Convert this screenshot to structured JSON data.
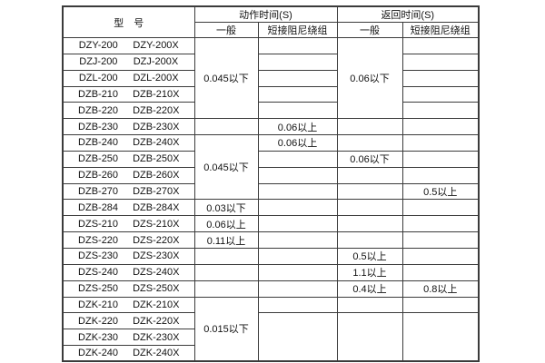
{
  "colors": {
    "background": "#ffffff",
    "border": "#3b3b3b",
    "text": "#111111"
  },
  "header": {
    "model": "型　号",
    "action_time": "动作时间(S)",
    "return_time": "返回时间(S)",
    "action_general": "一般",
    "action_damping": "短接阻尼绕组",
    "return_general": "一般",
    "return_damping": "短接阻尼绕组"
  },
  "models": [
    [
      "DZY-200",
      "DZY-200X"
    ],
    [
      "DZJ-200",
      "DZJ-200X"
    ],
    [
      "DZL-200",
      "DZL-200X"
    ],
    [
      "DZB-210",
      "DZB-210X"
    ],
    [
      "DZB-220",
      "DZB-220X"
    ],
    [
      "DZB-230",
      "DZB-230X"
    ],
    [
      "DZB-240",
      "DZB-240X"
    ],
    [
      "DZB-250",
      "DZB-250X"
    ],
    [
      "DZB-260",
      "DZB-260X"
    ],
    [
      "DZB-270",
      "DZB-270X"
    ],
    [
      "DZB-284",
      "DZB-284X"
    ],
    [
      "DZS-210",
      "DZS-210X"
    ],
    [
      "DZS-220",
      "DZS-220X"
    ],
    [
      "DZS-230",
      "DZS-230X"
    ],
    [
      "DZS-240",
      "DZS-240X"
    ],
    [
      "DZS-250",
      "DZS-250X"
    ],
    [
      "DZK-210",
      "DZK-210X"
    ],
    [
      "DZK-220",
      "DZK-220X"
    ],
    [
      "DZK-230",
      "DZK-230X"
    ],
    [
      "DZK-240",
      "DZK-240X"
    ]
  ],
  "columns": {
    "action_general": [
      {
        "row": 1,
        "span": 5,
        "text": "0.045以下"
      },
      {
        "row": 6,
        "span": 1,
        "text": ""
      },
      {
        "row": 7,
        "span": 4,
        "text": "0.045以下"
      },
      {
        "row": 11,
        "span": 1,
        "text": "0.03以下"
      },
      {
        "row": 12,
        "span": 1,
        "text": "0.06以上"
      },
      {
        "row": 13,
        "span": 1,
        "text": "0.11以上"
      },
      {
        "row": 14,
        "span": 1,
        "text": ""
      },
      {
        "row": 15,
        "span": 1,
        "text": ""
      },
      {
        "row": 16,
        "span": 1,
        "text": ""
      },
      {
        "row": 17,
        "span": 4,
        "text": "0.015以下"
      }
    ],
    "action_damping": [
      {
        "row": 1,
        "span": 1,
        "text": ""
      },
      {
        "row": 2,
        "span": 1,
        "text": ""
      },
      {
        "row": 3,
        "span": 1,
        "text": ""
      },
      {
        "row": 4,
        "span": 1,
        "text": ""
      },
      {
        "row": 5,
        "span": 1,
        "text": ""
      },
      {
        "row": 6,
        "span": 1,
        "text": "0.06以上"
      },
      {
        "row": 7,
        "span": 1,
        "text": "0.06以上"
      },
      {
        "row": 8,
        "span": 1,
        "text": ""
      },
      {
        "row": 9,
        "span": 1,
        "text": ""
      },
      {
        "row": 10,
        "span": 1,
        "text": ""
      },
      {
        "row": 11,
        "span": 1,
        "text": ""
      },
      {
        "row": 12,
        "span": 1,
        "text": ""
      },
      {
        "row": 13,
        "span": 1,
        "text": ""
      },
      {
        "row": 14,
        "span": 1,
        "text": ""
      },
      {
        "row": 15,
        "span": 1,
        "text": ""
      },
      {
        "row": 16,
        "span": 1,
        "text": ""
      },
      {
        "row": 17,
        "span": 1,
        "text": ""
      },
      {
        "row": 18,
        "span": 3,
        "text": ""
      }
    ],
    "return_general": [
      {
        "row": 1,
        "span": 5,
        "text": "0.06以下"
      },
      {
        "row": 6,
        "span": 1,
        "text": ""
      },
      {
        "row": 7,
        "span": 1,
        "text": ""
      },
      {
        "row": 8,
        "span": 1,
        "text": "0.06以下"
      },
      {
        "row": 9,
        "span": 1,
        "text": ""
      },
      {
        "row": 10,
        "span": 1,
        "text": ""
      },
      {
        "row": 11,
        "span": 1,
        "text": ""
      },
      {
        "row": 12,
        "span": 1,
        "text": ""
      },
      {
        "row": 13,
        "span": 1,
        "text": ""
      },
      {
        "row": 14,
        "span": 1,
        "text": "0.5以上"
      },
      {
        "row": 15,
        "span": 1,
        "text": "1.1以上"
      },
      {
        "row": 16,
        "span": 1,
        "text": "0.4以上"
      },
      {
        "row": 17,
        "span": 1,
        "text": ""
      },
      {
        "row": 18,
        "span": 3,
        "text": ""
      }
    ],
    "return_damping": [
      {
        "row": 1,
        "span": 1,
        "text": ""
      },
      {
        "row": 2,
        "span": 1,
        "text": ""
      },
      {
        "row": 3,
        "span": 1,
        "text": ""
      },
      {
        "row": 4,
        "span": 1,
        "text": ""
      },
      {
        "row": 5,
        "span": 1,
        "text": ""
      },
      {
        "row": 6,
        "span": 1,
        "text": ""
      },
      {
        "row": 7,
        "span": 1,
        "text": ""
      },
      {
        "row": 8,
        "span": 1,
        "text": ""
      },
      {
        "row": 9,
        "span": 1,
        "text": ""
      },
      {
        "row": 10,
        "span": 1,
        "text": "0.5以上"
      },
      {
        "row": 11,
        "span": 1,
        "text": ""
      },
      {
        "row": 12,
        "span": 1,
        "text": ""
      },
      {
        "row": 13,
        "span": 1,
        "text": ""
      },
      {
        "row": 14,
        "span": 1,
        "text": ""
      },
      {
        "row": 15,
        "span": 1,
        "text": ""
      },
      {
        "row": 16,
        "span": 1,
        "text": "0.8以上"
      },
      {
        "row": 17,
        "span": 1,
        "text": ""
      },
      {
        "row": 18,
        "span": 3,
        "text": ""
      }
    ]
  }
}
